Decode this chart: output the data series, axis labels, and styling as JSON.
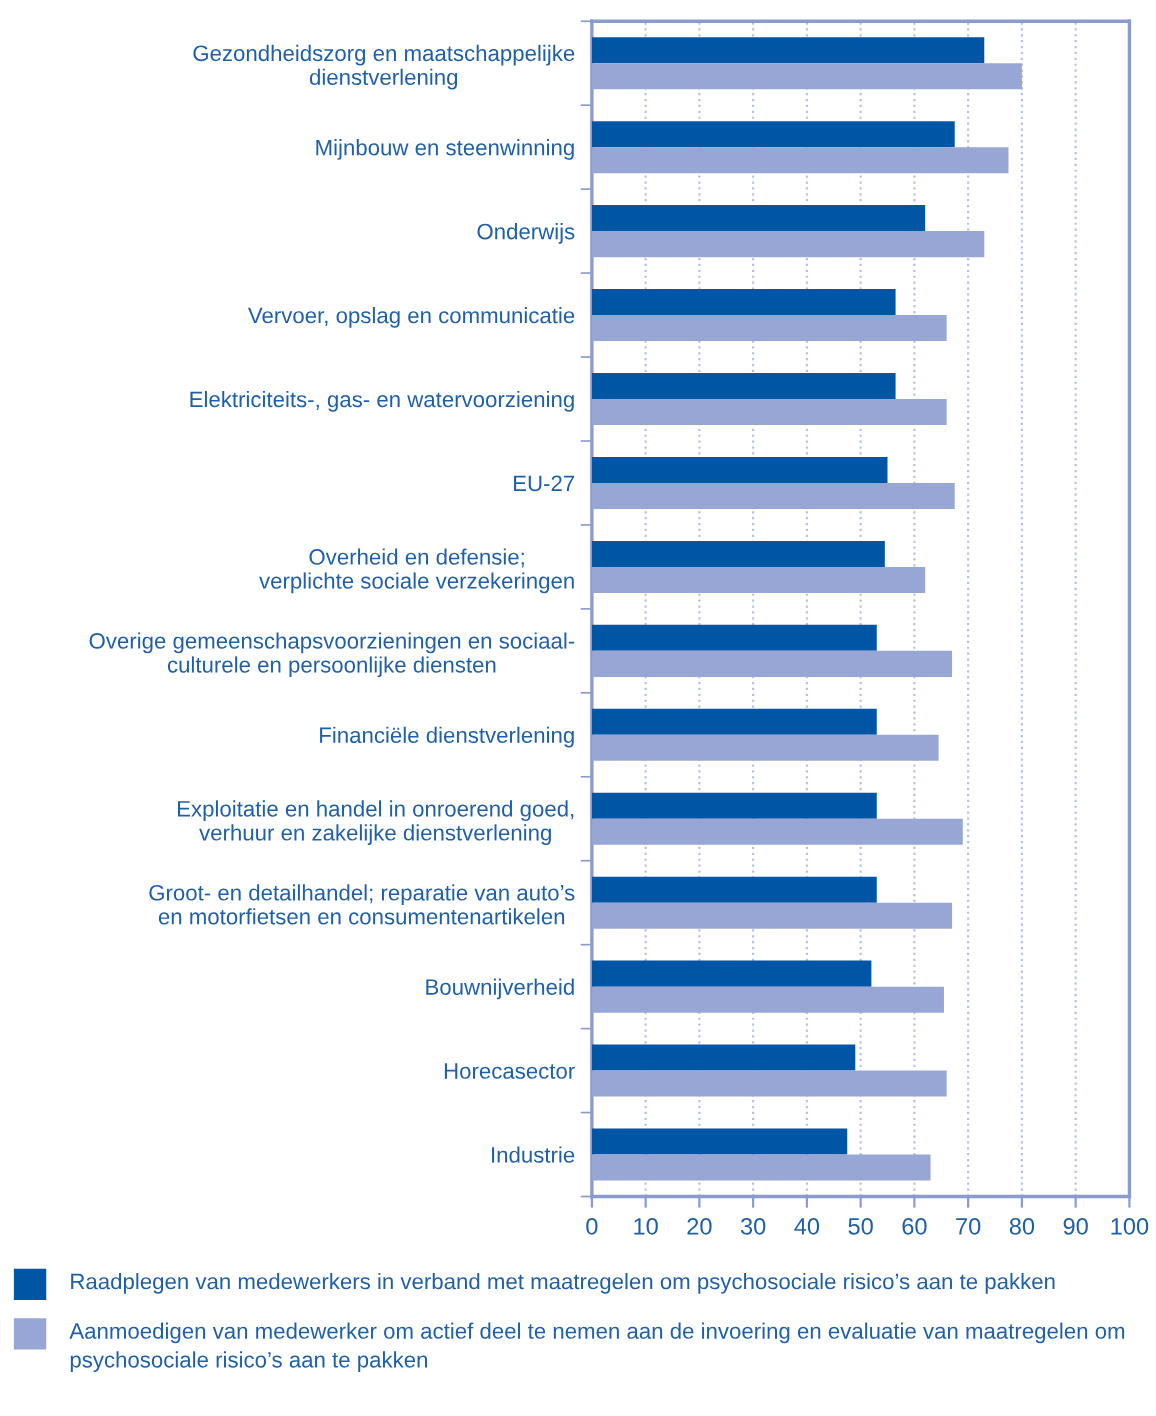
{
  "chart_data": {
    "type": "bar",
    "orientation": "horizontal",
    "categories": [
      "Gezondheidszorg en maatschappelijke\ndienstverlening",
      "Mijnbouw en steenwinning",
      "Onderwijs",
      "Vervoer, opslag en communicatie",
      "Elektriciteits-, gas- en watervoorziening",
      "EU-27",
      "Overheid en defensie;\nverplichte sociale verzekeringen",
      "Overige gemeenschapsvoorzieningen en sociaal-\nculturele en persoonlijke diensten",
      "Financiële dienstverlening",
      "Exploitatie en handel in onroerend goed,\nverhuur en zakelijke dienstverlening",
      "Groot- en detailhandel; reparatie van auto’s\nen motorfietsen en consumentenartikelen",
      "Bouwnijverheid",
      "Horecasector",
      "Industrie"
    ],
    "series": [
      {
        "name": "Raadplegen van medewerkers in verband met maatregelen om psychosociale risico’s aan te pakken",
        "color": "#0055a5",
        "values": [
          73,
          67.5,
          62,
          56.5,
          56.5,
          55,
          54.5,
          53,
          53,
          53,
          53,
          52,
          49,
          47.5
        ]
      },
      {
        "name": "Aanmoedigen van medewerker om actief deel te nemen aan de invoering en evaluatie van maatregelen om psychosociale risico’s aan te pakken",
        "color": "#97a6d4",
        "values": [
          80,
          77.5,
          73,
          66,
          66,
          67.5,
          62,
          67,
          64.5,
          69,
          67,
          65.5,
          66,
          63
        ]
      }
    ],
    "xlim": [
      0,
      100
    ],
    "xticks": [
      0,
      10,
      20,
      30,
      40,
      50,
      60,
      70,
      80,
      90,
      100
    ],
    "grid": "x",
    "legend": "bottom"
  }
}
